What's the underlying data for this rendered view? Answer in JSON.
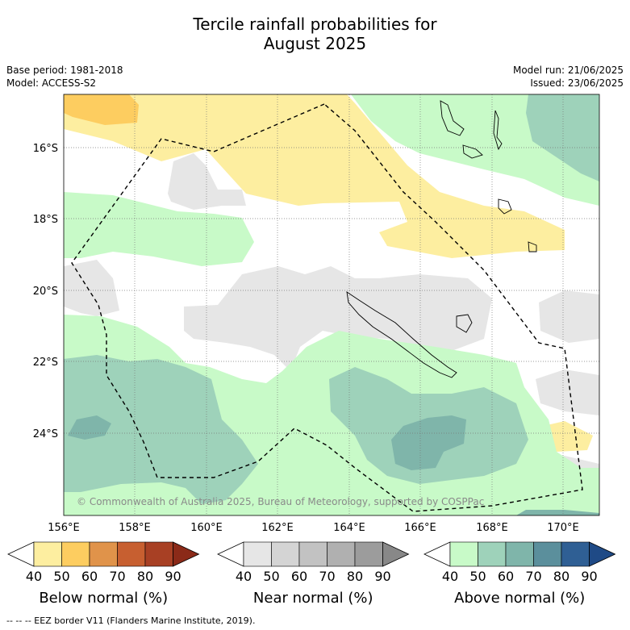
{
  "title_line1": "Tercile rainfall probabilities for",
  "title_line2": "August 2025",
  "base_period": "Base period: 1981-2018",
  "model": "Model: ACCESS-S2",
  "model_run": "Model run: 21/06/2025",
  "issued": "Issued: 23/06/2025",
  "credit": "© Commonwealth of Australia 2025, Bureau of Meteorology, supported by COSPPac",
  "lat_labels": [
    "16°S",
    "18°S",
    "20°S",
    "22°S",
    "24°S"
  ],
  "lon_labels": [
    "156°E",
    "158°E",
    "160°E",
    "162°E",
    "164°E",
    "166°E",
    "168°E",
    "170°E"
  ],
  "legends": [
    {
      "title": "Below normal (%)",
      "labels": [
        "40",
        "50",
        "60",
        "70",
        "80",
        "90"
      ],
      "colors": [
        "#ffffff",
        "#fdeea0",
        "#fdcd60",
        "#e0934a",
        "#c75f30",
        "#a84024",
        "#8b2a18"
      ]
    },
    {
      "title": "Near normal (%)",
      "labels": [
        "40",
        "50",
        "60",
        "70",
        "80",
        "90"
      ],
      "colors": [
        "#ffffff",
        "#e6e6e6",
        "#d4d4d4",
        "#c2c2c2",
        "#b0b0b0",
        "#9c9c9c",
        "#888888"
      ]
    },
    {
      "title": "Above normal (%)",
      "labels": [
        "40",
        "50",
        "60",
        "70",
        "80",
        "90"
      ],
      "colors": [
        "#ffffff",
        "#c8fac8",
        "#9ed2ba",
        "#7fb5aa",
        "#5b8f9c",
        "#2f5f94",
        "#1f4a86"
      ]
    }
  ],
  "footer": "--  --  -- EEZ border V11 (Flanders Marine Institute, 2019).",
  "colors": {
    "below_50": "#fdeea0",
    "below_60": "#fdcd60",
    "near_50": "#e6e6e6",
    "above_50": "#c8fac8",
    "above_60": "#9ed2ba",
    "above_70": "#7fb5aa"
  }
}
